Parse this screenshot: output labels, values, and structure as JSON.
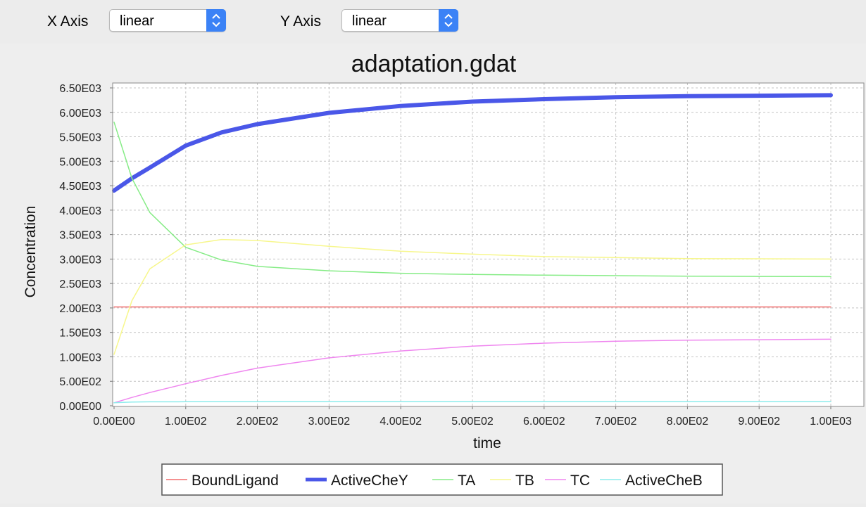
{
  "toolbar": {
    "x_axis_label": "X Axis",
    "x_axis_value": "linear",
    "y_axis_label": "Y Axis",
    "y_axis_value": "linear"
  },
  "chart_data": {
    "type": "line",
    "title": "adaptation.gdat",
    "xlabel": "time",
    "ylabel": "Concentration",
    "xlim": [
      0,
      1000
    ],
    "ylim": [
      0,
      6500
    ],
    "x_ticks": [
      "0.00E00",
      "1.00E02",
      "2.00E02",
      "3.00E02",
      "4.00E02",
      "5.00E02",
      "6.00E02",
      "7.00E02",
      "8.00E02",
      "9.00E02",
      "1.00E03"
    ],
    "y_ticks": [
      "0.00E00",
      "5.00E02",
      "1.00E03",
      "1.50E03",
      "2.00E03",
      "2.50E03",
      "3.00E03",
      "3.50E03",
      "4.00E03",
      "4.50E03",
      "5.00E03",
      "5.50E03",
      "6.00E03",
      "6.50E03"
    ],
    "grid": true,
    "legend_position": "bottom",
    "x": [
      0,
      25,
      50,
      100,
      150,
      200,
      300,
      400,
      500,
      600,
      700,
      800,
      900,
      1000
    ],
    "series": [
      {
        "name": "BoundLigand",
        "color": "#f26d6d",
        "width": 1.5,
        "values": [
          2020,
          2020,
          2020,
          2020,
          2020,
          2020,
          2020,
          2020,
          2020,
          2020,
          2020,
          2020,
          2020,
          2020
        ]
      },
      {
        "name": "ActiveCheY",
        "color": "#4a57e8",
        "width": 6,
        "values": [
          4400,
          4650,
          4870,
          5320,
          5590,
          5760,
          5990,
          6130,
          6220,
          6270,
          6310,
          6330,
          6340,
          6350
        ]
      },
      {
        "name": "TA",
        "color": "#86ec86",
        "width": 1.5,
        "values": [
          5800,
          4650,
          3950,
          3240,
          2980,
          2850,
          2760,
          2710,
          2685,
          2670,
          2660,
          2650,
          2645,
          2640
        ]
      },
      {
        "name": "TB",
        "color": "#f7f78c",
        "width": 1.5,
        "values": [
          1050,
          2150,
          2800,
          3290,
          3400,
          3380,
          3260,
          3160,
          3100,
          3050,
          3030,
          3010,
          3005,
          3000
        ]
      },
      {
        "name": "TC",
        "color": "#ef86ef",
        "width": 1.5,
        "values": [
          60,
          170,
          270,
          450,
          620,
          770,
          980,
          1120,
          1220,
          1280,
          1320,
          1340,
          1350,
          1360
        ]
      },
      {
        "name": "ActiveCheB",
        "color": "#8cecec",
        "width": 1.5,
        "values": [
          60,
          75,
          80,
          82,
          83,
          84,
          85,
          85,
          85,
          85,
          85,
          85,
          85,
          85
        ]
      }
    ]
  }
}
